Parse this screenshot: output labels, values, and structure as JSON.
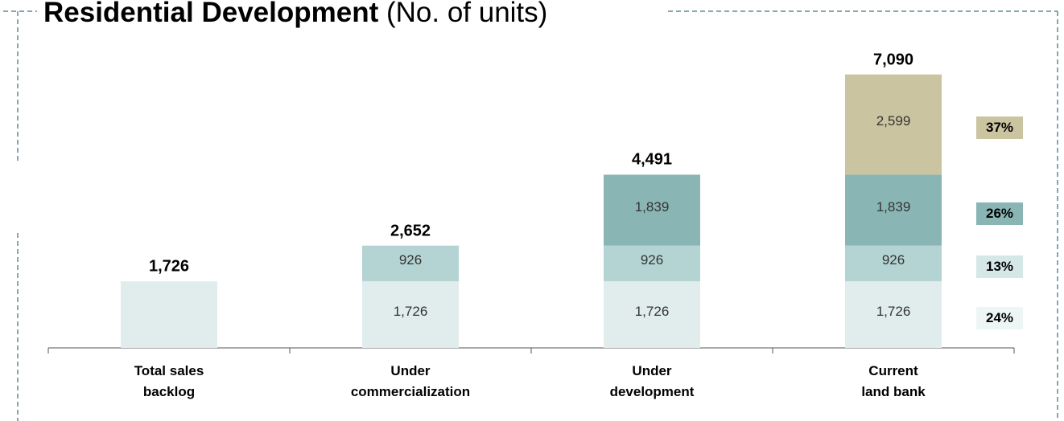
{
  "chart_data": {
    "type": "stacked_bar",
    "title": "Residential Development",
    "subtitle": "(No. of units)",
    "categories": [
      "Total sales\nbacklog",
      "Under\ncommercialization",
      "Under\ndevelopment",
      "Current\nland bank"
    ],
    "totals": [
      1726,
      2652,
      4491,
      7090
    ],
    "total_labels": [
      "1,726",
      "2,652",
      "4,491",
      "7,090"
    ],
    "series": [
      {
        "color": "#e1eded",
        "values": [
          1726,
          1726,
          1726,
          1726
        ],
        "value_labels": [
          null,
          "1,726",
          "1,726",
          "1,726"
        ],
        "share": {
          "value": 24,
          "label": "24%"
        },
        "share_color": "#eef5f5"
      },
      {
        "color": "#b4d3d3",
        "values": [
          null,
          926,
          926,
          926
        ],
        "value_labels": [
          null,
          "926",
          "926",
          "926"
        ],
        "share": {
          "value": 13,
          "label": "13%"
        },
        "share_color": "#d5e7e7"
      },
      {
        "color": "#8ab5b5",
        "values": [
          null,
          null,
          1839,
          1839
        ],
        "value_labels": [
          null,
          null,
          "1,839",
          "1,839"
        ],
        "share": {
          "value": 26,
          "label": "26%"
        },
        "share_color": "#8ab5b5"
      },
      {
        "color": "#cbc4a0",
        "values": [
          null,
          null,
          null,
          2599
        ],
        "value_labels": [
          null,
          null,
          null,
          "2,599"
        ],
        "share": {
          "value": 37,
          "label": "37%"
        },
        "share_color": "#cbc4a0"
      }
    ],
    "ylim": [
      0,
      7500
    ]
  }
}
